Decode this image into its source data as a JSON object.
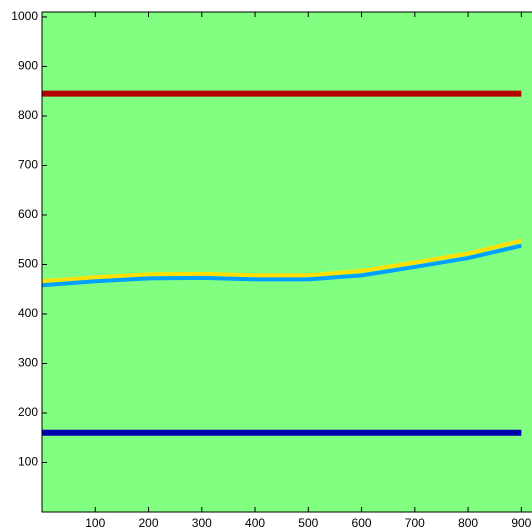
{
  "chart_data": {
    "type": "line",
    "x": [
      0,
      100,
      200,
      300,
      400,
      500,
      600,
      700,
      800,
      900
    ],
    "series": [
      {
        "color": "#b00000",
        "values": [
          845,
          845,
          845,
          845,
          845,
          845,
          845,
          845,
          845,
          845
        ]
      },
      {
        "color": "#0000b0",
        "values": [
          160,
          160,
          160,
          160,
          160,
          160,
          160,
          160,
          160,
          160
        ]
      },
      {
        "color": "#ffe000",
        "values": [
          466,
          474,
          480,
          481,
          478,
          478,
          487,
          504,
          522,
          548
        ]
      },
      {
        "color": "#00a0ff",
        "values": [
          458,
          466,
          472,
          473,
          470,
          470,
          478,
          495,
          513,
          538
        ]
      }
    ],
    "background": "#80ff80",
    "xlim": [
      0,
      920
    ],
    "ylim": [
      0,
      1010
    ],
    "xticks": [
      100,
      200,
      300,
      400,
      500,
      600,
      700,
      800,
      900
    ],
    "yticks": [
      100,
      200,
      300,
      400,
      500,
      600,
      700,
      800,
      900,
      1000
    ]
  }
}
